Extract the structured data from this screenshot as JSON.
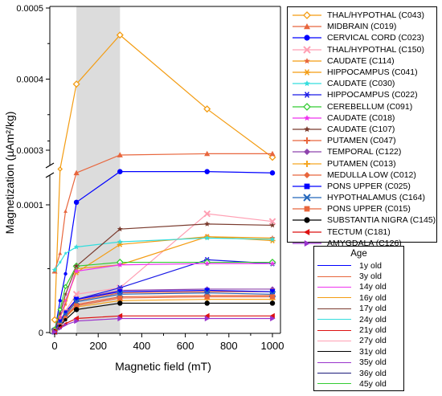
{
  "chart_data": {
    "type": "line",
    "xlabel": "Magnetic field (mT)",
    "ylabel": "Magnetization (µAm²/kg)",
    "x_ticks": [
      "0",
      "200",
      "400",
      "600",
      "800",
      "1000"
    ],
    "y_ticks_lower": [
      "0",
      "0.0001"
    ],
    "y_ticks_upper": [
      "0.0003",
      "0.0004",
      "0.0005"
    ],
    "xlim": [
      -10,
      1020
    ],
    "ylim_lower": [
      0,
      0.00016
    ],
    "ylim_upper": [
      0.00026,
      0.0005
    ],
    "axis_break": true,
    "shaded_region": [
      100,
      300
    ],
    "x": [
      0,
      25,
      50,
      100,
      300,
      700,
      1000
    ],
    "series": [
      {
        "name": "THAL/HYPOTHAL (C043)",
        "color": "#f39c12",
        "marker": "diamond-open",
        "line_color": "#f39c12",
        "values": [
          1e-05,
          0.000128,
          null,
          0.000393,
          0.000462,
          0.000358,
          0.00029
        ]
      },
      {
        "name": "MIDBRAIN (C019)",
        "color": "#e8663d",
        "marker": "triangle",
        "line_color": "#e8663d",
        "values": [
          4.8e-05,
          6.2e-05,
          9.5e-05,
          0.000125,
          0.000139,
          0.00014,
          0.00014
        ]
      },
      {
        "name": "CERVICAL CORD (C023)",
        "color": "#0000ff",
        "marker": "circle",
        "line_color": "#0000ff",
        "values": [
          5e-07,
          2.5e-05,
          4.6e-05,
          0.000102,
          0.000126,
          0.000126,
          0.000125
        ]
      },
      {
        "name": "THAL/HYPOTHAL (C150)",
        "color": "#ff9fb3",
        "marker": "x",
        "line_color": "#ff9fb3",
        "values": [
          1e-06,
          8e-06,
          1.7e-05,
          3e-05,
          3.5e-05,
          9.3e-05,
          8.7e-05
        ]
      },
      {
        "name": "CAUDATE (C114)",
        "color": "#e8663d",
        "marker": "star",
        "line_color": "#f39c12",
        "values": [
          1e-06,
          1.2e-05,
          2.2e-05,
          5e-05,
          5.3e-05,
          7.5e-05,
          7.4e-05
        ]
      },
      {
        "name": "HIPPOCAMPUS (C041)",
        "color": "#f39c12",
        "marker": "asterisk",
        "line_color": "#f39c12",
        "values": [
          1e-06,
          1.2e-05,
          2.5e-05,
          4.7e-05,
          6.9e-05,
          7.5e-05,
          7.2e-05
        ]
      },
      {
        "name": "CAUDATE (C030)",
        "color": "#33dddd",
        "marker": "star",
        "line_color": "#33dddd",
        "values": [
          4.9e-05,
          5.5e-05,
          6.2e-05,
          6.7e-05,
          7.1e-05,
          7.4e-05,
          7.3e-05
        ]
      },
      {
        "name": "HIPPOCAMPUS (C022)",
        "color": "#1a1ae6",
        "marker": "asterisk",
        "line_color": "#1a1ae6",
        "values": [
          2e-06,
          9e-06,
          1.6e-05,
          2.6e-05,
          3.5e-05,
          5.7e-05,
          5.4e-05
        ]
      },
      {
        "name": "CEREBELLUM (C091)",
        "color": "#33cc33",
        "marker": "diamond-open",
        "line_color": "#33cc33",
        "values": [
          2e-06,
          1.8e-05,
          3.6e-05,
          5.2e-05,
          5.5e-05,
          5.5e-05,
          5.5e-05
        ]
      },
      {
        "name": "CAUDATE (C018)",
        "color": "#ee33ee",
        "marker": "star",
        "line_color": "#ee33ee",
        "values": [
          1e-06,
          1.2e-05,
          2.5e-05,
          4.8e-05,
          5.3e-05,
          5.4e-05,
          5.4e-05
        ]
      },
      {
        "name": "CAUDATE (C107)",
        "color": "#7a3b2e",
        "marker": "star",
        "line_color": "#7a3b2e",
        "values": [
          1e-06,
          1.5e-05,
          3e-05,
          5.2e-05,
          8.1e-05,
          8.5e-05,
          8.4e-05
        ]
      },
      {
        "name": "PUTAMEN (C047)",
        "color": "#e8663d",
        "marker": "plus",
        "line_color": "#e8663d",
        "values": [
          1e-06,
          7e-06,
          1.3e-05,
          2.2e-05,
          2.8e-05,
          2.9e-05,
          2.9e-05
        ]
      },
      {
        "name": "TEMPORAL (C122)",
        "color": "#8e44ad",
        "marker": "diamond",
        "line_color": "#8e44ad",
        "values": [
          1e-06,
          8e-06,
          1.6e-05,
          2.6e-05,
          3.3e-05,
          3.4e-05,
          3.4e-05
        ]
      },
      {
        "name": "PUTAMEN (C013)",
        "color": "#f5a623",
        "marker": "plus",
        "line_color": "#f5a623",
        "values": [
          1e-06,
          6e-06,
          1.2e-05,
          2e-05,
          2.5e-05,
          2.6e-05,
          2.6e-05
        ]
      },
      {
        "name": "MEDULLA LOW (C012)",
        "color": "#e8663d",
        "marker": "diamond",
        "line_color": "#e8663d",
        "values": [
          1e-06,
          8e-06,
          1.5e-05,
          2.5e-05,
          3.1e-05,
          3.2e-05,
          3.2e-05
        ]
      },
      {
        "name": "PONS UPPER (C025)",
        "color": "#0000ff",
        "marker": "square",
        "line_color": "#0000ff",
        "values": [
          1e-06,
          9e-06,
          1.6e-05,
          2.6e-05,
          3.2e-05,
          3.3e-05,
          3.2e-05
        ]
      },
      {
        "name": "HYPOTHALAMUS (C164)",
        "color": "#2266bb",
        "marker": "x",
        "line_color": "#2266bb",
        "values": [
          1e-06,
          7e-06,
          1.4e-05,
          2.4e-05,
          3e-05,
          3.1e-05,
          3e-05
        ]
      },
      {
        "name": "PONS UPPER (C015)",
        "color": "#e8663d",
        "marker": "square",
        "line_color": "#e8663d",
        "values": [
          1e-06,
          6e-06,
          1.2e-05,
          2.1e-05,
          2.7e-05,
          2.8e-05,
          2.8e-05
        ]
      },
      {
        "name": "SUBSTANTIA NIGRA (C145)",
        "color": "#000000",
        "marker": "circle",
        "line_color": "#000000",
        "values": [
          5e-07,
          5e-06,
          1e-05,
          1.8e-05,
          2.3e-05,
          2.3e-05,
          2.3e-05
        ]
      },
      {
        "name": "TECTUM (C181)",
        "color": "#dd1111",
        "marker": "triangle-left",
        "line_color": "#dd1111",
        "values": [
          5e-07,
          4e-06,
          7e-06,
          1.1e-05,
          1.3e-05,
          1.3e-05,
          1.3e-05
        ]
      },
      {
        "name": "AMYGDALA (C126)",
        "color": "#9933cc",
        "marker": "triangle-right",
        "line_color": "#9933cc",
        "values": [
          5e-07,
          3e-06,
          6e-06,
          9e-06,
          1.1e-05,
          1.1e-05,
          1.1e-05
        ]
      }
    ],
    "age_legend": {
      "title": "Age",
      "items": [
        {
          "label": "1y old",
          "color": "#0000ff"
        },
        {
          "label": "3y old",
          "color": "#e8663d"
        },
        {
          "label": "14y old",
          "color": "#ee33ee"
        },
        {
          "label": "16y old",
          "color": "#f39c12"
        },
        {
          "label": "17y old",
          "color": "#7a3b2e"
        },
        {
          "label": "24y old",
          "color": "#33dddd"
        },
        {
          "label": "21y old",
          "color": "#dd1111"
        },
        {
          "label": "27y old",
          "color": "#ff9fb3"
        },
        {
          "label": "31y old",
          "color": "#000000"
        },
        {
          "label": "35y old",
          "color": "#9933cc"
        },
        {
          "label": "36y old",
          "color": "#1a1a7a"
        },
        {
          "label": "45y old",
          "color": "#33cc33"
        }
      ]
    }
  }
}
